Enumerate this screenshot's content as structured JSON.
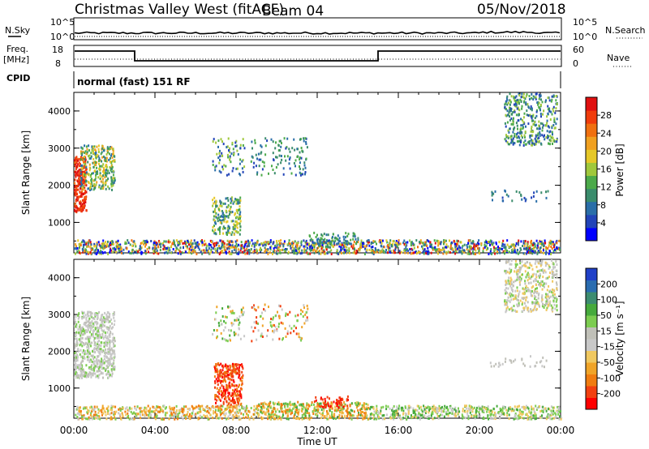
{
  "header": {
    "title": "Christmas Valley West (fitACF)",
    "beam": "Beam 04",
    "date": "05/Nov/2018"
  },
  "noise_panel": {
    "left_label": "N.Sky",
    "right_label": "N.Search",
    "left_ticks": [
      "10^5",
      "10^0"
    ],
    "right_ticks": [
      "10^5",
      "10^0"
    ]
  },
  "freq_panel": {
    "left_label_1": "Freq.",
    "left_label_2": "[MHz]",
    "right_label": "Nave",
    "left_ticks": [
      "18",
      "8"
    ],
    "right_ticks": [
      "60",
      "0"
    ]
  },
  "cpid_panel": {
    "label": "CPID",
    "mode": "normal (fast) 151 RF"
  },
  "chart_data": [
    {
      "type": "heatmap",
      "name_key": "power",
      "ylabel": "Slant Range [km]",
      "y_ticks": [
        "4000",
        "3000",
        "2000",
        "1000"
      ],
      "ylim": [
        180,
        4500
      ],
      "xlim": [
        0,
        24
      ],
      "x_tick_hours": [
        0,
        4,
        8,
        12,
        16,
        20,
        24
      ],
      "colorbar_label": "Power [dB]",
      "colorbar_ticks": [
        "28",
        "24",
        "20",
        "16",
        "12",
        "8",
        "4"
      ],
      "colorbar_colors": [
        "#0000ff",
        "#2244b8",
        "#2a6ea8",
        "#3a8c6c",
        "#4caa4a",
        "#a0c83c",
        "#e6c828",
        "#f0a020",
        "#f07010",
        "#f03c0c",
        "#e01010"
      ]
    },
    {
      "type": "heatmap",
      "name_key": "velocity",
      "ylabel": "Slant Range [km]",
      "y_ticks": [
        "4000",
        "3000",
        "2000",
        "1000"
      ],
      "ylim": [
        180,
        4500
      ],
      "xlim": [
        0,
        24
      ],
      "x_tick_labels": [
        "00:00",
        "04:00",
        "08:00",
        "12:00",
        "16:00",
        "20:00",
        "00:00"
      ],
      "xlabel": "Time UT",
      "colorbar_label": "Velocity [m s⁻¹]",
      "colorbar_ticks": [
        "200",
        "100",
        "50",
        "15",
        "-15",
        "-50",
        "-100",
        "-200"
      ],
      "colorbar_colors": [
        "#ff0000",
        "#f24010",
        "#f07c10",
        "#f0a428",
        "#f0c860",
        "#c8c8c8",
        "#c0c0b8",
        "#7ccc50",
        "#46aa3c",
        "#3c8c70",
        "#2a6cb0",
        "#2040c8"
      ]
    }
  ]
}
